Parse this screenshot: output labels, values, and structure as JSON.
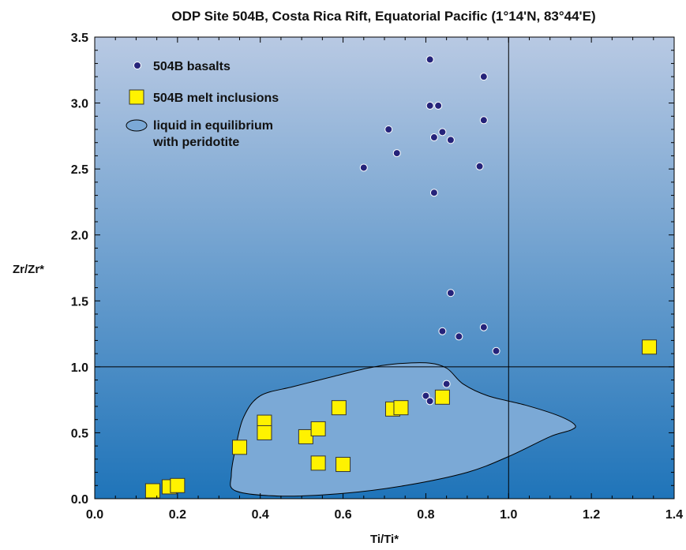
{
  "chart_data": {
    "type": "scatter",
    "title": "ODP Site 504B, Costa Rica Rift, Equatorial Pacific (1°14'N, 83°44'E)",
    "xlabel": "Ti/Ti*",
    "ylabel": "Zr/Zr*",
    "xlim": [
      0.0,
      1.4
    ],
    "ylim": [
      0.0,
      3.5
    ],
    "x_ticks": [
      "0.0",
      "0.2",
      "0.4",
      "0.6",
      "0.8",
      "1.0",
      "1.2",
      "1.4"
    ],
    "y_ticks": [
      "0.0",
      "0.5",
      "1.0",
      "1.5",
      "2.0",
      "2.5",
      "3.0",
      "3.5"
    ],
    "reference_lines": {
      "x": 1.0,
      "y": 1.0
    },
    "legend_position": "top-left",
    "colors": {
      "background_top": "#b8c9e3",
      "background_bottom": "#1f74b9",
      "basalt_marker": "#25237a",
      "inclusion_marker": "#fff200",
      "field_fill": "#7ba9d6"
    },
    "series": [
      {
        "name": "504B basalts",
        "marker": "circle",
        "points": [
          [
            0.81,
            3.33
          ],
          [
            0.94,
            3.2
          ],
          [
            0.81,
            2.98
          ],
          [
            0.83,
            2.98
          ],
          [
            0.94,
            2.87
          ],
          [
            0.71,
            2.8
          ],
          [
            0.84,
            2.78
          ],
          [
            0.82,
            2.74
          ],
          [
            0.86,
            2.72
          ],
          [
            0.73,
            2.62
          ],
          [
            0.65,
            2.51
          ],
          [
            0.93,
            2.52
          ],
          [
            0.82,
            2.32
          ],
          [
            0.86,
            1.56
          ],
          [
            0.84,
            1.27
          ],
          [
            0.94,
            1.3
          ],
          [
            0.88,
            1.23
          ],
          [
            0.97,
            1.12
          ],
          [
            0.85,
            0.87
          ],
          [
            0.8,
            0.78
          ],
          [
            0.81,
            0.74
          ]
        ]
      },
      {
        "name": "504B melt inclusions",
        "marker": "square",
        "points": [
          [
            0.14,
            0.06
          ],
          [
            0.18,
            0.09
          ],
          [
            0.2,
            0.1
          ],
          [
            0.35,
            0.39
          ],
          [
            0.41,
            0.58
          ],
          [
            0.41,
            0.5
          ],
          [
            0.51,
            0.47
          ],
          [
            0.54,
            0.53
          ],
          [
            0.54,
            0.27
          ],
          [
            0.59,
            0.69
          ],
          [
            0.6,
            0.26
          ],
          [
            0.72,
            0.68
          ],
          [
            0.74,
            0.69
          ],
          [
            0.84,
            0.77
          ],
          [
            1.34,
            1.15
          ]
        ]
      },
      {
        "name": "liquid in equilibrium with peridotite",
        "marker": "field",
        "outline": [
          [
            0.4,
            0.78
          ],
          [
            0.48,
            0.85
          ],
          [
            0.58,
            0.93
          ],
          [
            0.66,
            0.99
          ],
          [
            0.72,
            1.02
          ],
          [
            0.8,
            1.03
          ],
          [
            0.85,
            0.99
          ],
          [
            0.89,
            0.87
          ],
          [
            0.95,
            0.78
          ],
          [
            1.04,
            0.71
          ],
          [
            1.12,
            0.63
          ],
          [
            1.16,
            0.56
          ],
          [
            1.15,
            0.52
          ],
          [
            1.1,
            0.47
          ],
          [
            1.0,
            0.32
          ],
          [
            0.9,
            0.2
          ],
          [
            0.75,
            0.1
          ],
          [
            0.6,
            0.04
          ],
          [
            0.45,
            0.02
          ],
          [
            0.34,
            0.06
          ],
          [
            0.33,
            0.18
          ],
          [
            0.34,
            0.38
          ],
          [
            0.36,
            0.62
          ]
        ]
      }
    ],
    "legend": [
      {
        "marker": "circle",
        "label": "504B basalts"
      },
      {
        "marker": "square",
        "label": "504B melt inclusions"
      },
      {
        "marker": "ellipse",
        "label_lines": [
          "liquid in equilibrium",
          "with peridotite"
        ]
      }
    ]
  }
}
